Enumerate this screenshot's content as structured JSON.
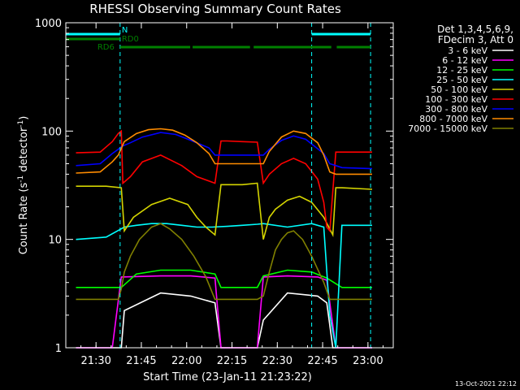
{
  "chart_data": {
    "type": "line",
    "title": "RHESSI Observing Summary Count Rates",
    "xlabel": "Start Time (23-Jan-11 21:23:22)",
    "ylabel_parts": [
      "Count Rate (s",
      "-1",
      " detector",
      "-1",
      ")"
    ],
    "y_scale": "log",
    "ylim": [
      1,
      1000
    ],
    "xlim_min": [
      -3.37,
      105.0
    ],
    "xticks": [
      {
        "t": 6.63,
        "label": "21:30"
      },
      {
        "t": 21.63,
        "label": "21:45"
      },
      {
        "t": 36.63,
        "label": "22:00"
      },
      {
        "t": 51.63,
        "label": "22:15"
      },
      {
        "t": 66.63,
        "label": "22:30"
      },
      {
        "t": 81.63,
        "label": "22:45"
      },
      {
        "t": 96.63,
        "label": "23:00"
      }
    ],
    "yticks": [
      {
        "v": 1,
        "label": "1"
      },
      {
        "v": 10,
        "label": "10"
      },
      {
        "v": 100,
        "label": "100"
      },
      {
        "v": 1000,
        "label": "1000"
      }
    ],
    "legend_title": [
      "Det 1,3,4,5,6,9,",
      "FDecim 3, Att 0"
    ],
    "series": [
      {
        "name": "3 - 6 keV",
        "color": "#ffffff",
        "x": [
          0,
          15,
          16,
          28,
          38,
          46,
          48,
          60,
          62,
          70,
          80,
          83,
          85,
          86,
          98
        ],
        "y": [
          1,
          1,
          2.2,
          3.2,
          3,
          2.6,
          1,
          1,
          1.8,
          3.2,
          3,
          2.6,
          1,
          1,
          1
        ]
      },
      {
        "name": "6 - 12 keV",
        "color": "#ff00ff",
        "x": [
          0,
          12,
          15,
          28,
          38,
          46,
          48,
          60,
          62,
          70,
          80,
          83,
          86,
          98
        ],
        "y": [
          1,
          1,
          4.5,
          4.6,
          4.6,
          4.4,
          1,
          1,
          4.5,
          4.6,
          4.5,
          4.2,
          1,
          1
        ]
      },
      {
        "name": "12 - 25 keV",
        "color": "#00ff00",
        "x": [
          0,
          15,
          20,
          28,
          38,
          46,
          48,
          60,
          62,
          70,
          78,
          83,
          88,
          98
        ],
        "y": [
          3.6,
          3.6,
          4.8,
          5.2,
          5.2,
          4.8,
          3.6,
          3.6,
          4.6,
          5.2,
          5,
          4.4,
          3.6,
          3.6
        ]
      },
      {
        "name": "25 - 50 keV",
        "color": "#00ffff",
        "x": [
          0,
          10,
          16,
          20,
          25,
          30,
          35,
          40,
          45,
          50,
          55,
          60,
          62,
          70,
          78,
          82,
          84,
          86,
          88,
          98
        ],
        "y": [
          10,
          10.5,
          13,
          13.5,
          14,
          14,
          13.5,
          13,
          13,
          13.2,
          13.5,
          13.8,
          14,
          13,
          14,
          13,
          2,
          1,
          13.5,
          13.5
        ]
      },
      {
        "name": "50 - 100 keV",
        "color": "#d4d400",
        "x": [
          0,
          10,
          15,
          16,
          19,
          25,
          31,
          37,
          40,
          43,
          46,
          48,
          50,
          55,
          60,
          62,
          64,
          66,
          70,
          74,
          78,
          82,
          85,
          86,
          88,
          98
        ],
        "y": [
          31,
          31,
          30,
          12,
          16,
          21,
          24,
          21,
          16,
          13,
          11,
          32,
          32,
          32,
          33,
          10,
          16,
          19,
          23,
          25,
          22,
          16,
          11,
          30,
          30,
          29
        ]
      },
      {
        "name": "100 - 300 keV",
        "color": "#ff0000",
        "x": [
          0,
          8,
          12,
          14,
          15,
          15.5,
          18,
          22,
          28,
          35,
          40,
          46,
          48,
          50,
          55,
          60,
          62,
          64,
          68,
          72,
          76,
          80,
          82,
          83,
          84,
          86,
          88,
          98
        ],
        "y": [
          63,
          64,
          80,
          95,
          100,
          33,
          38,
          52,
          60,
          48,
          38,
          33,
          81,
          81,
          80,
          79,
          33,
          40,
          50,
          56,
          50,
          36,
          22,
          13,
          12,
          64,
          64,
          64
        ]
      },
      {
        "name": "300 - 800 keV",
        "color": "#0000ff",
        "x": [
          0,
          8,
          12,
          14,
          15,
          18,
          22,
          28,
          33,
          38,
          44,
          46,
          48,
          50,
          55,
          60,
          62,
          64,
          68,
          72,
          76,
          82,
          84,
          86,
          88,
          98
        ],
        "y": [
          48,
          50,
          62,
          68,
          72,
          78,
          88,
          97,
          93,
          82,
          70,
          60,
          60,
          60,
          60,
          60,
          60,
          68,
          82,
          90,
          84,
          62,
          50,
          48,
          46,
          45
        ]
      },
      {
        "name": "800 - 7000 keV",
        "color": "#ff8c00",
        "x": [
          0,
          8,
          12,
          14,
          16,
          20,
          24,
          28,
          32,
          36,
          40,
          44,
          46,
          48,
          50,
          55,
          60,
          62,
          64,
          68,
          72,
          76,
          80,
          82,
          84,
          86,
          88,
          98
        ],
        "y": [
          41,
          42,
          52,
          60,
          80,
          95,
          103,
          105,
          102,
          92,
          78,
          62,
          50,
          50,
          50,
          50,
          50,
          50,
          65,
          88,
          100,
          95,
          78,
          60,
          42,
          40,
          40,
          40
        ]
      },
      {
        "name": "7000 - 15000 keV",
        "color": "#808000",
        "x": [
          0,
          14,
          15,
          16,
          18,
          21,
          25,
          28,
          31,
          35,
          39,
          43,
          46,
          48,
          60,
          62,
          64,
          66,
          68,
          70,
          72,
          75,
          78,
          82,
          84,
          86,
          98
        ],
        "y": [
          2.8,
          2.8,
          3.5,
          5,
          7,
          10,
          13,
          14,
          12.5,
          10,
          7,
          4.5,
          2.8,
          2.8,
          2.8,
          3,
          5,
          8,
          10,
          11.5,
          12,
          10,
          7,
          4,
          2.8,
          2.8,
          2.8
        ]
      }
    ],
    "bars": [
      {
        "label": "N",
        "color": "#00ffff",
        "segments": [
          [
            -3.4,
            14.6
          ],
          [
            78,
            97.5
          ]
        ],
        "vlines": [
          14.6,
          78,
          97.5
        ]
      },
      {
        "label": "RD0",
        "color": "#008000",
        "segments": [
          [
            -3.4,
            14.6
          ]
        ]
      },
      {
        "label": "RD6",
        "color": "#008000",
        "segments": [
          [
            14.6,
            37.8
          ],
          [
            38.6,
            57.6
          ],
          [
            58.8,
            84.5
          ],
          [
            86.3,
            97.5
          ]
        ]
      }
    ],
    "plot_timestamp": "13-Oct-2021 22:12"
  }
}
